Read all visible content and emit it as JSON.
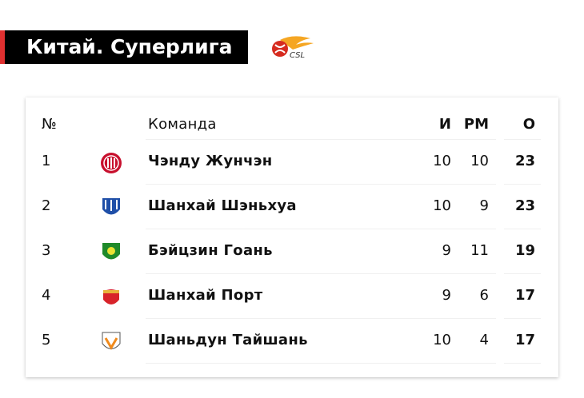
{
  "title": "Китай. Суперлига",
  "league_logo": "CSL",
  "columns": {
    "num": "№",
    "team": "Команда",
    "games": "И",
    "diff": "РМ",
    "points": "О"
  },
  "rows": [
    {
      "pos": "1",
      "team": "Чэнду Жунчэн",
      "games": "10",
      "diff": "10",
      "points": "23",
      "badge_color": "#c8102e"
    },
    {
      "pos": "2",
      "team": "Шанхай Шэньхуа",
      "games": "10",
      "diff": "9",
      "points": "23",
      "badge_color": "#1f4fa8"
    },
    {
      "pos": "3",
      "team": "Бэйцзин Гоань",
      "games": "9",
      "diff": "11",
      "points": "19",
      "badge_color": "#1f8a2a"
    },
    {
      "pos": "4",
      "team": "Шанхай Порт",
      "games": "9",
      "diff": "6",
      "points": "17",
      "badge_color": "#d8232a"
    },
    {
      "pos": "5",
      "team": "Шаньдун Тайшань",
      "games": "10",
      "diff": "4",
      "points": "17",
      "badge_color": "#f08a1c"
    }
  ]
}
